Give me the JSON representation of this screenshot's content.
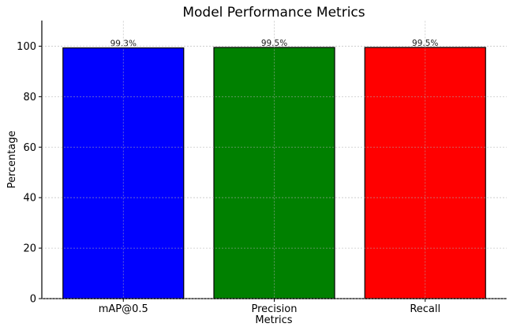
{
  "chart_data": {
    "type": "bar",
    "title": "Model Performance Metrics",
    "xlabel": "Metrics",
    "ylabel": "Percentage",
    "categories": [
      "mAP@0.5",
      "Precision",
      "Recall"
    ],
    "values": [
      99.3,
      99.5,
      99.5
    ],
    "data_labels": [
      "99.3%",
      "99.5%",
      "99.5%"
    ],
    "colors": [
      "#0000ff",
      "#008000",
      "#ff0000"
    ],
    "ylim": [
      0,
      110
    ],
    "yticks": [
      0,
      20,
      40,
      60,
      80,
      100
    ],
    "grid": true,
    "legend": "none"
  }
}
